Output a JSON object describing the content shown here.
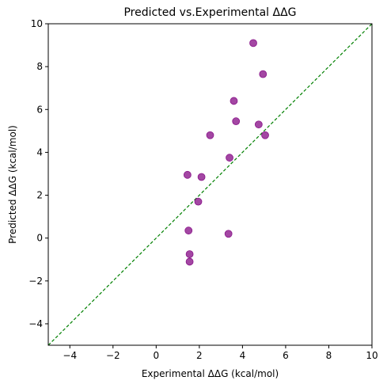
{
  "chart_data": {
    "type": "scatter",
    "title": "Predicted vs.Experimental ΔΔG",
    "xlabel": "Experimental ΔΔG (kcal/mol)",
    "ylabel": "Predicted ΔΔG (kcal/mol)",
    "xlim": [
      -5,
      10
    ],
    "ylim": [
      -5,
      10
    ],
    "xticks": [
      -4,
      -2,
      0,
      2,
      4,
      6,
      8,
      10
    ],
    "yticks": [
      -4,
      -2,
      0,
      2,
      4,
      6,
      8,
      10
    ],
    "grid": false,
    "reference_line": {
      "x": [
        -5,
        10
      ],
      "y": [
        -5,
        10
      ],
      "color": "#008000",
      "style": "dashed"
    },
    "marker_color": "#800080",
    "points": [
      {
        "x": 4.5,
        "y": 9.1
      },
      {
        "x": 4.95,
        "y": 7.65
      },
      {
        "x": 3.6,
        "y": 6.4
      },
      {
        "x": 3.7,
        "y": 5.45
      },
      {
        "x": 4.75,
        "y": 5.3
      },
      {
        "x": 2.5,
        "y": 4.8
      },
      {
        "x": 5.05,
        "y": 4.8
      },
      {
        "x": 3.4,
        "y": 3.75
      },
      {
        "x": 1.45,
        "y": 2.95
      },
      {
        "x": 2.1,
        "y": 2.85
      },
      {
        "x": 1.95,
        "y": 1.7
      },
      {
        "x": 1.5,
        "y": 0.35
      },
      {
        "x": 3.35,
        "y": 0.2
      },
      {
        "x": 1.55,
        "y": -0.75
      },
      {
        "x": 1.55,
        "y": -1.1
      }
    ]
  }
}
